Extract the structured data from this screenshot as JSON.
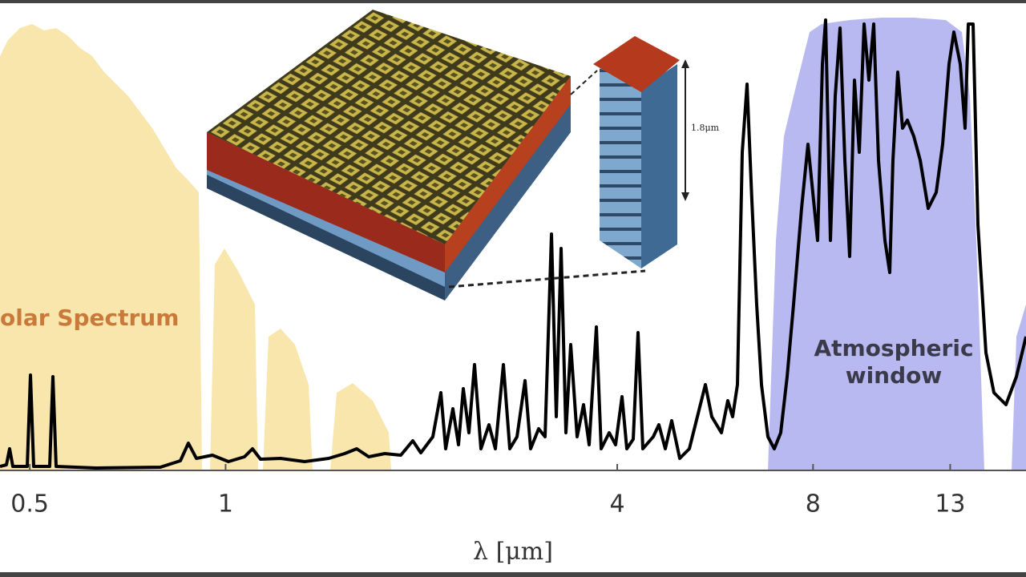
{
  "chart_data": {
    "type": "line",
    "xlabel": "λ [μm]",
    "xscale": "log",
    "xlim": [
      0.45,
      17
    ],
    "xticks": [
      0.5,
      1,
      4,
      8,
      13
    ],
    "grid": false,
    "annotations": [
      "olar Spectrum",
      "Atmospheric",
      "window",
      "1.8μm"
    ],
    "solar_color": "#f8e6ad",
    "window_color": "#b9b9f2",
    "curve_color": "#000000"
  }
}
